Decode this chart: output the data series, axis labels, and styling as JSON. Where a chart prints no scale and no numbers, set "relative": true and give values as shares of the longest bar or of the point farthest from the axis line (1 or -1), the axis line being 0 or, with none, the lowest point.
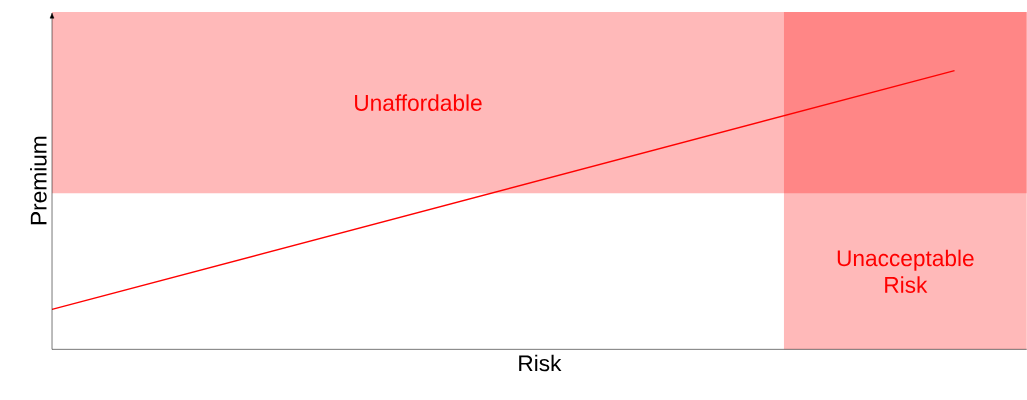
{
  "chart_data": {
    "type": "line",
    "relative": true,
    "xlabel": "Risk",
    "ylabel": "Premium",
    "categories": [
      null,
      null
    ],
    "series": [
      {
        "color": "#ff0000",
        "values": [
          0.143,
          1
        ]
      }
    ],
    "annotations": [
      "Unaffordable",
      "Unacceptable Risk"
    ]
  }
}
